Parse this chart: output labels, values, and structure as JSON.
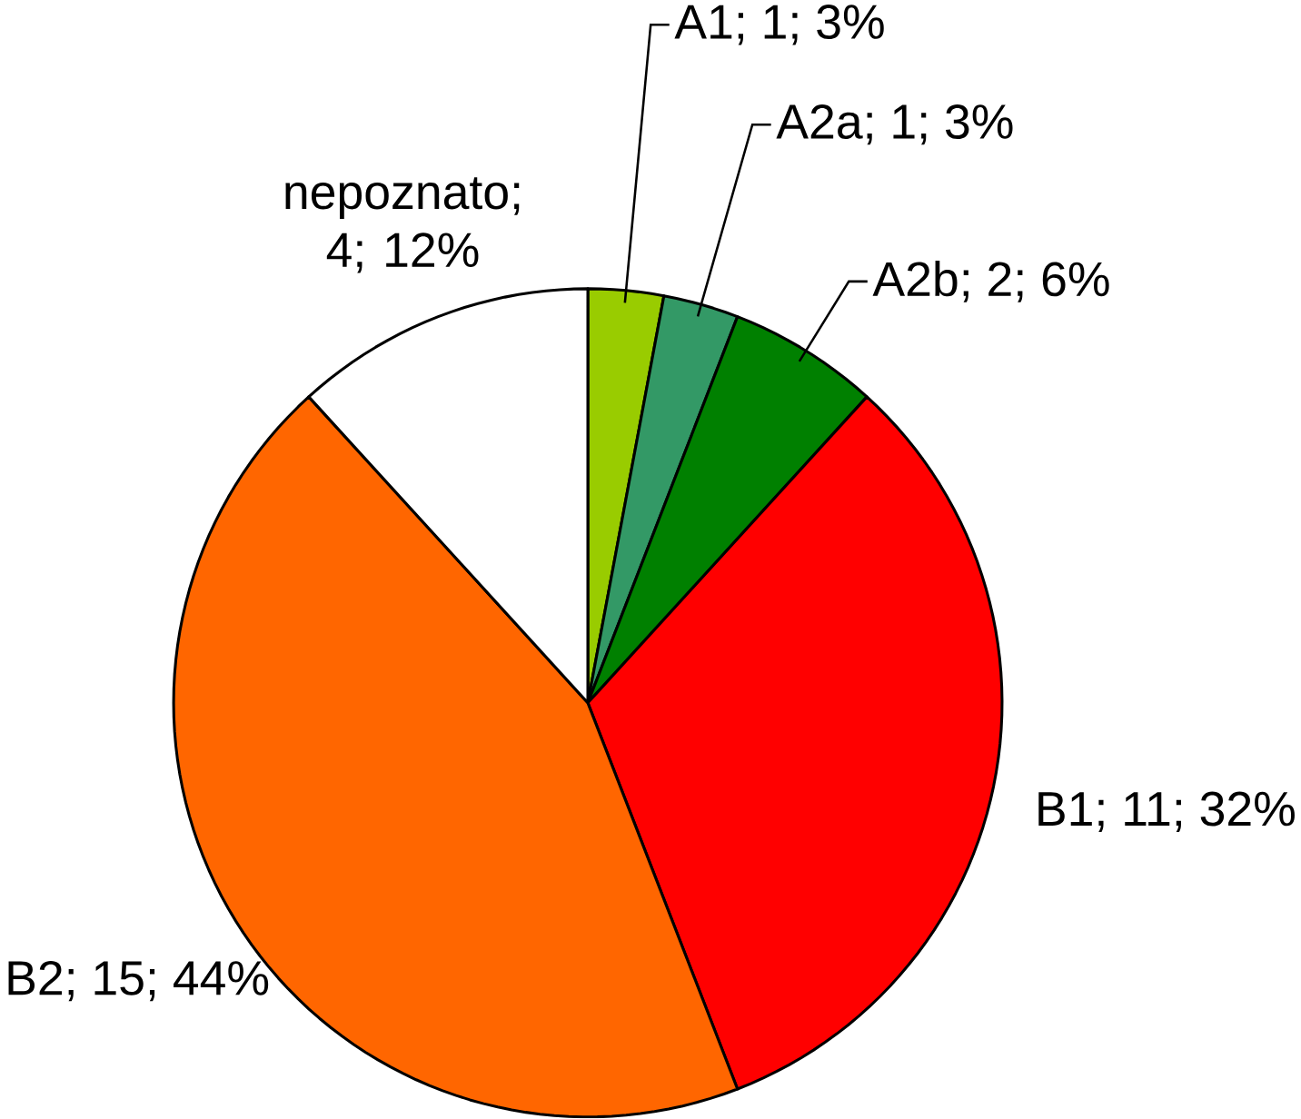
{
  "chart_data": {
    "type": "pie",
    "categories": [
      null,
      null,
      null,
      null,
      null,
      null
    ],
    "values": [
      1,
      1,
      2,
      11,
      15,
      4
    ],
    "value_labels": [
      "A1; 1; 3%",
      "A2a; 1; 3%",
      "A2b; 2; 6%",
      "B1; 11; 32%",
      "B2; 15; 44%",
      "nepoznato; 4; 12%"
    ],
    "colors": [
      "#99cc00",
      "#339966",
      "#008000",
      "#ff0000",
      "#ff6600",
      "#ffffff"
    ]
  }
}
